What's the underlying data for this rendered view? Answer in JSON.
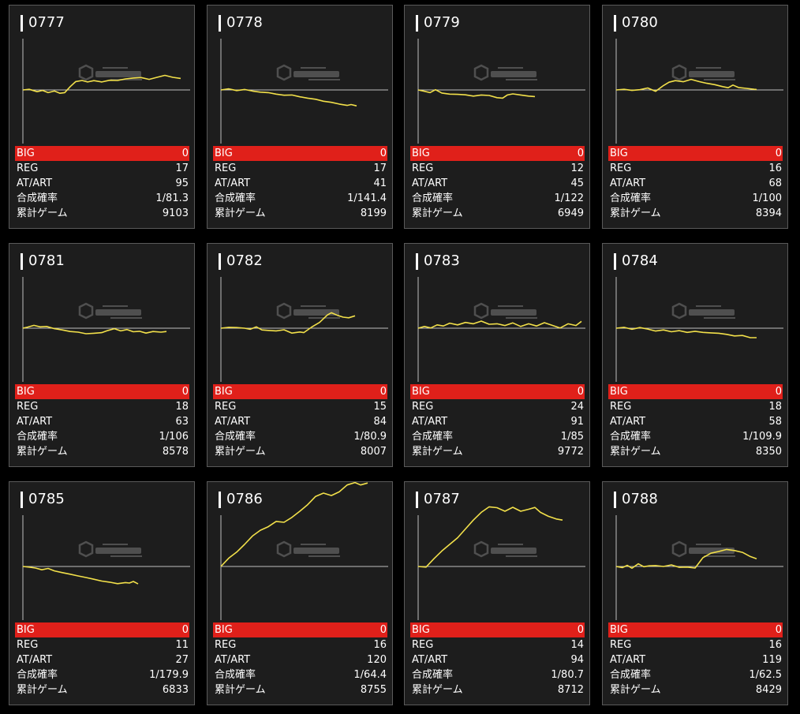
{
  "colors": {
    "background": "#000000",
    "card": "#1d1d1d",
    "border": "#5a5a5a",
    "big_bar": "#e0201a",
    "graph_line": "#f2e04a",
    "axis": "#bfbfbf"
  },
  "watermark": {
    "logo_icon": "hex-cube-icon"
  },
  "labels": {
    "big": "BIG",
    "reg": "REG",
    "at": "AT/ART",
    "prob": "合成確率",
    "games": "累計ゲーム"
  },
  "machines": [
    {
      "number": "0777",
      "big": "0",
      "reg": "17",
      "at": "95",
      "prob": "1/81.3",
      "games": "9103",
      "graph": [
        [
          0,
          0
        ],
        [
          8,
          0.3
        ],
        [
          18,
          -0.8
        ],
        [
          25,
          -0.2
        ],
        [
          32,
          -1.2
        ],
        [
          40,
          -0.5
        ],
        [
          47,
          -1.5
        ],
        [
          53,
          -1.2
        ],
        [
          60,
          1.5
        ],
        [
          67,
          3.8
        ],
        [
          75,
          4.3
        ],
        [
          82,
          3.6
        ],
        [
          90,
          4.2
        ],
        [
          100,
          3.6
        ],
        [
          110,
          4.4
        ],
        [
          120,
          4.3
        ],
        [
          130,
          5.0
        ],
        [
          140,
          5.4
        ],
        [
          150,
          5.6
        ],
        [
          160,
          4.8
        ],
        [
          170,
          5.7
        ],
        [
          180,
          6.6
        ],
        [
          190,
          5.7
        ],
        [
          200,
          5.2
        ]
      ]
    },
    {
      "number": "0778",
      "big": "0",
      "reg": "17",
      "at": "41",
      "prob": "1/141.4",
      "games": "8199",
      "graph": [
        [
          0,
          0
        ],
        [
          10,
          0.5
        ],
        [
          20,
          -0.3
        ],
        [
          30,
          0.2
        ],
        [
          40,
          -0.5
        ],
        [
          50,
          -1.0
        ],
        [
          60,
          -1.2
        ],
        [
          70,
          -1.9
        ],
        [
          80,
          -2.4
        ],
        [
          90,
          -2.3
        ],
        [
          100,
          -3.1
        ],
        [
          110,
          -3.7
        ],
        [
          120,
          -4.2
        ],
        [
          130,
          -5.1
        ],
        [
          140,
          -5.6
        ],
        [
          150,
          -6.4
        ],
        [
          160,
          -7.0
        ],
        [
          165,
          -6.6
        ],
        [
          172,
          -7.2
        ]
      ]
    },
    {
      "number": "0779",
      "big": "0",
      "reg": "12",
      "at": "45",
      "prob": "1/122",
      "games": "6949",
      "graph": [
        [
          0,
          0
        ],
        [
          8,
          -0.6
        ],
        [
          15,
          -1.2
        ],
        [
          22,
          0.1
        ],
        [
          30,
          -1.4
        ],
        [
          40,
          -1.9
        ],
        [
          50,
          -2.0
        ],
        [
          60,
          -2.2
        ],
        [
          70,
          -2.8
        ],
        [
          80,
          -2.3
        ],
        [
          90,
          -2.5
        ],
        [
          100,
          -3.5
        ],
        [
          107,
          -3.7
        ],
        [
          113,
          -2.3
        ],
        [
          120,
          -1.8
        ],
        [
          130,
          -2.3
        ],
        [
          140,
          -2.8
        ],
        [
          148,
          -3.0
        ]
      ]
    },
    {
      "number": "0780",
      "big": "0",
      "reg": "16",
      "at": "68",
      "prob": "1/100",
      "games": "8394",
      "graph": [
        [
          0,
          0
        ],
        [
          10,
          0.3
        ],
        [
          20,
          -0.2
        ],
        [
          30,
          0.1
        ],
        [
          40,
          0.9
        ],
        [
          50,
          -0.6
        ],
        [
          60,
          2.0
        ],
        [
          67,
          3.5
        ],
        [
          75,
          4.2
        ],
        [
          85,
          3.7
        ],
        [
          95,
          4.8
        ],
        [
          105,
          3.8
        ],
        [
          115,
          3.0
        ],
        [
          125,
          2.4
        ],
        [
          135,
          1.5
        ],
        [
          142,
          1.0
        ],
        [
          148,
          2.2
        ],
        [
          155,
          1.1
        ],
        [
          165,
          0.7
        ],
        [
          175,
          0.3
        ],
        [
          178,
          0.2
        ]
      ]
    },
    {
      "number": "0781",
      "big": "0",
      "reg": "18",
      "at": "63",
      "prob": "1/106",
      "games": "8578",
      "graph": [
        [
          0,
          0
        ],
        [
          6,
          0.5
        ],
        [
          14,
          1.3
        ],
        [
          22,
          0.6
        ],
        [
          30,
          0.8
        ],
        [
          40,
          -0.2
        ],
        [
          50,
          -0.8
        ],
        [
          60,
          -1.5
        ],
        [
          70,
          -1.8
        ],
        [
          80,
          -2.5
        ],
        [
          90,
          -2.3
        ],
        [
          100,
          -2.0
        ],
        [
          108,
          -1.0
        ],
        [
          116,
          -0.2
        ],
        [
          124,
          -1.2
        ],
        [
          132,
          -0.6
        ],
        [
          140,
          -1.6
        ],
        [
          148,
          -1.4
        ],
        [
          156,
          -2.2
        ],
        [
          165,
          -1.5
        ],
        [
          175,
          -1.8
        ],
        [
          182,
          -1.5
        ]
      ]
    },
    {
      "number": "0782",
      "big": "0",
      "reg": "15",
      "at": "84",
      "prob": "1/80.9",
      "games": "8007",
      "graph": [
        [
          0,
          0
        ],
        [
          10,
          0.4
        ],
        [
          20,
          0.3
        ],
        [
          30,
          0.0
        ],
        [
          37,
          -0.5
        ],
        [
          45,
          0.6
        ],
        [
          52,
          -0.8
        ],
        [
          60,
          -1.0
        ],
        [
          70,
          -1.2
        ],
        [
          80,
          -0.7
        ],
        [
          90,
          -2.2
        ],
        [
          100,
          -1.7
        ],
        [
          105,
          -2.0
        ],
        [
          115,
          0.5
        ],
        [
          125,
          2.6
        ],
        [
          135,
          6.0
        ],
        [
          140,
          7.0
        ],
        [
          148,
          5.8
        ],
        [
          155,
          5.0
        ],
        [
          162,
          4.7
        ],
        [
          170,
          5.6
        ]
      ]
    },
    {
      "number": "0783",
      "big": "0",
      "reg": "24",
      "at": "91",
      "prob": "1/85",
      "games": "9772",
      "graph": [
        [
          0,
          0
        ],
        [
          8,
          0.8
        ],
        [
          16,
          0.1
        ],
        [
          24,
          1.5
        ],
        [
          32,
          1.0
        ],
        [
          40,
          2.3
        ],
        [
          50,
          1.5
        ],
        [
          60,
          2.6
        ],
        [
          70,
          2.0
        ],
        [
          80,
          3.2
        ],
        [
          90,
          1.8
        ],
        [
          100,
          2.0
        ],
        [
          110,
          1.2
        ],
        [
          120,
          2.4
        ],
        [
          130,
          0.8
        ],
        [
          140,
          2.0
        ],
        [
          150,
          1.0
        ],
        [
          160,
          2.5
        ],
        [
          170,
          1.3
        ],
        [
          180,
          0.1
        ],
        [
          190,
          2.0
        ],
        [
          200,
          1.2
        ],
        [
          207,
          3.1
        ]
      ]
    },
    {
      "number": "0784",
      "big": "0",
      "reg": "18",
      "at": "58",
      "prob": "1/109.9",
      "games": "8350",
      "graph": [
        [
          0,
          0
        ],
        [
          10,
          0.4
        ],
        [
          20,
          -0.5
        ],
        [
          30,
          0.3
        ],
        [
          40,
          -0.4
        ],
        [
          50,
          -1.3
        ],
        [
          60,
          -0.8
        ],
        [
          70,
          -1.6
        ],
        [
          80,
          -1.1
        ],
        [
          90,
          -1.9
        ],
        [
          100,
          -1.4
        ],
        [
          110,
          -1.9
        ],
        [
          120,
          -2.1
        ],
        [
          130,
          -2.3
        ],
        [
          140,
          -2.8
        ],
        [
          150,
          -3.5
        ],
        [
          160,
          -3.3
        ],
        [
          170,
          -4.3
        ],
        [
          178,
          -4.3
        ]
      ]
    },
    {
      "number": "0785",
      "big": "0",
      "reg": "11",
      "at": "27",
      "prob": "1/179.9",
      "games": "6833",
      "graph": [
        [
          0,
          0
        ],
        [
          8,
          -0.3
        ],
        [
          16,
          -0.7
        ],
        [
          24,
          -1.5
        ],
        [
          32,
          -0.9
        ],
        [
          40,
          -2.0
        ],
        [
          50,
          -2.8
        ],
        [
          60,
          -3.5
        ],
        [
          70,
          -4.3
        ],
        [
          80,
          -5.0
        ],
        [
          90,
          -5.8
        ],
        [
          100,
          -6.6
        ],
        [
          110,
          -7.1
        ],
        [
          120,
          -7.8
        ],
        [
          130,
          -7.3
        ],
        [
          135,
          -7.5
        ],
        [
          140,
          -6.8
        ],
        [
          146,
          -7.9
        ]
      ]
    },
    {
      "number": "0786",
      "big": "0",
      "reg": "16",
      "at": "120",
      "prob": "1/64.4",
      "games": "8755",
      "graph": [
        [
          0,
          0
        ],
        [
          10,
          3.8
        ],
        [
          20,
          6.5
        ],
        [
          30,
          10.0
        ],
        [
          40,
          13.8
        ],
        [
          50,
          16.4
        ],
        [
          60,
          18.0
        ],
        [
          70,
          20.4
        ],
        [
          80,
          20.0
        ],
        [
          90,
          22.2
        ],
        [
          100,
          25.0
        ],
        [
          110,
          28.0
        ],
        [
          120,
          31.7
        ],
        [
          130,
          33.2
        ],
        [
          140,
          32.1
        ],
        [
          150,
          33.8
        ],
        [
          160,
          36.9
        ],
        [
          170,
          38.0
        ],
        [
          177,
          36.9
        ],
        [
          186,
          37.8
        ]
      ]
    },
    {
      "number": "0787",
      "big": "0",
      "reg": "14",
      "at": "94",
      "prob": "1/80.7",
      "games": "8712",
      "graph": [
        [
          0,
          0
        ],
        [
          10,
          -0.3
        ],
        [
          20,
          3.5
        ],
        [
          30,
          7.0
        ],
        [
          40,
          10.0
        ],
        [
          50,
          13.0
        ],
        [
          60,
          17.0
        ],
        [
          70,
          21.0
        ],
        [
          80,
          24.5
        ],
        [
          90,
          27.0
        ],
        [
          100,
          26.6
        ],
        [
          110,
          25.0
        ],
        [
          120,
          26.8
        ],
        [
          130,
          25.0
        ],
        [
          140,
          25.9
        ],
        [
          148,
          26.7
        ],
        [
          155,
          24.5
        ],
        [
          165,
          22.7
        ],
        [
          175,
          21.5
        ],
        [
          183,
          21.0
        ]
      ]
    },
    {
      "number": "0788",
      "big": "0",
      "reg": "16",
      "at": "119",
      "prob": "1/62.5",
      "games": "8429",
      "graph": [
        [
          0,
          0
        ],
        [
          8,
          -0.5
        ],
        [
          14,
          0.5
        ],
        [
          20,
          -0.8
        ],
        [
          28,
          1.2
        ],
        [
          35,
          -0.1
        ],
        [
          42,
          0.3
        ],
        [
          50,
          0.4
        ],
        [
          60,
          0.0
        ],
        [
          70,
          0.7
        ],
        [
          80,
          -0.4
        ],
        [
          90,
          -0.3
        ],
        [
          100,
          -0.7
        ],
        [
          110,
          4.0
        ],
        [
          120,
          6.0
        ],
        [
          130,
          6.8
        ],
        [
          140,
          7.7
        ],
        [
          150,
          7.2
        ],
        [
          160,
          6.4
        ],
        [
          170,
          4.5
        ],
        [
          178,
          3.5
        ]
      ]
    }
  ]
}
